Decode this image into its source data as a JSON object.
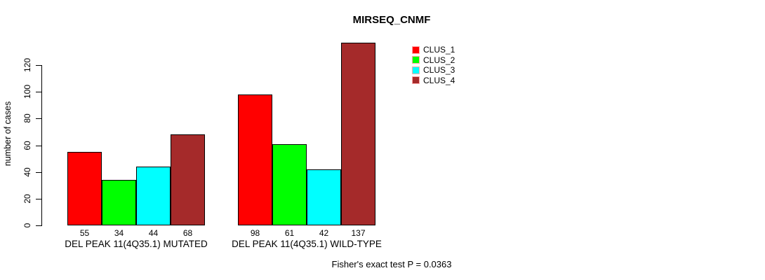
{
  "page": {
    "background": "#ffffff",
    "text_color": "#000000"
  },
  "chart_data": {
    "type": "bar",
    "title": "MIRSEQ_CNMF",
    "ylabel": "number of cases",
    "xlabel": "",
    "categories": [
      "DEL PEAK 11(4Q35.1) MUTATED",
      "DEL PEAK 11(4Q35.1) WILD-TYPE"
    ],
    "series": [
      {
        "name": "CLUS_1",
        "color": "#ff0000",
        "values": [
          55,
          98
        ]
      },
      {
        "name": "CLUS_2",
        "color": "#00ff00",
        "values": [
          34,
          61
        ]
      },
      {
        "name": "CLUS_3",
        "color": "#00ffff",
        "values": [
          44,
          42
        ]
      },
      {
        "name": "CLUS_4",
        "color": "#a52a2a",
        "values": [
          68,
          137
        ]
      }
    ],
    "bar_value_labels": [
      [
        "55",
        "34",
        "44",
        "68"
      ],
      [
        "98",
        "61",
        "42",
        "137"
      ]
    ],
    "yticks": [
      0,
      20,
      40,
      60,
      80,
      100,
      120
    ],
    "ylim": [
      0,
      137.5
    ],
    "grid": false,
    "legend_position": "top-right",
    "legend_entries": [
      "CLUS_1",
      "CLUS_2",
      "CLUS_3",
      "CLUS_4"
    ],
    "annotation": "Fisher's exact test P = 0.0363"
  }
}
